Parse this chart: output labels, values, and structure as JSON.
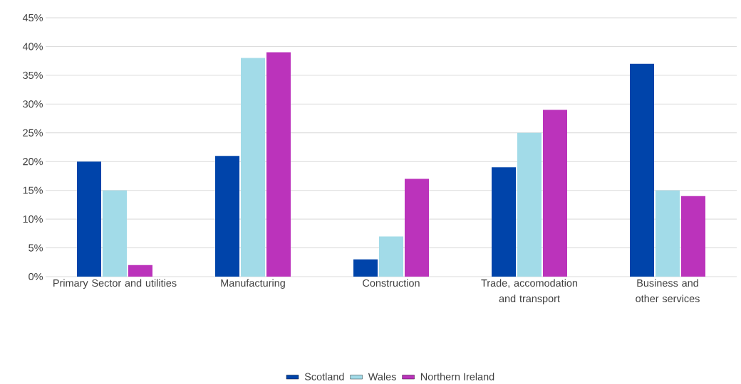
{
  "chart_data": {
    "type": "bar",
    "categories": [
      "Primary Sector and utilities",
      "Manufacturing",
      "Construction",
      "Trade, accomodation and transport",
      "Business and other services"
    ],
    "series": [
      {
        "name": "Scotland",
        "color": "#0044aa",
        "values": [
          20,
          21,
          3,
          19,
          37
        ]
      },
      {
        "name": "Wales",
        "color": "#a2dbe8",
        "values": [
          15,
          38,
          7,
          25,
          15
        ]
      },
      {
        "name": "Northern Ireland",
        "color": "#bb33bb",
        "values": [
          2,
          39,
          17,
          29,
          14
        ]
      }
    ],
    "ylim": [
      0,
      45
    ],
    "yticks": [
      {
        "value": 0,
        "label": "0%"
      },
      {
        "value": 5,
        "label": "5%"
      },
      {
        "value": 10,
        "label": "10%"
      },
      {
        "value": 15,
        "label": "15%"
      },
      {
        "value": 20,
        "label": "20%"
      },
      {
        "value": 25,
        "label": "25%"
      },
      {
        "value": 30,
        "label": "30%"
      },
      {
        "value": 35,
        "label": "35%"
      },
      {
        "value": 40,
        "label": "40%"
      },
      {
        "value": 45,
        "label": "45%"
      }
    ],
    "grid": "y",
    "legend": "bottom"
  }
}
